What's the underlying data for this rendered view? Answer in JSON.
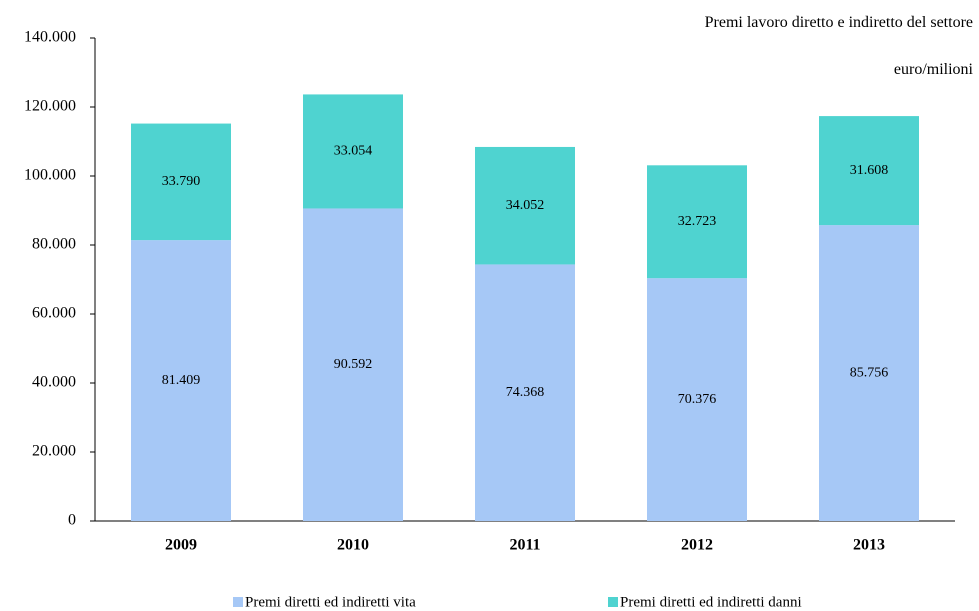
{
  "chart_data": {
    "type": "stacked_bar",
    "title": "Premi lavoro diretto e indiretto del settore",
    "subtitle": "euro/milioni",
    "categories": [
      "2009",
      "2010",
      "2011",
      "2012",
      "2013"
    ],
    "series": [
      {
        "name": "Premi diretti ed indiretti vita",
        "color": "#a6c8f6",
        "values": [
          81409,
          90592,
          74368,
          70376,
          85756
        ],
        "value_labels": [
          "81.409",
          "90.592",
          "74.368",
          "70.376",
          "85.756"
        ]
      },
      {
        "name": "Premi diretti ed indiretti danni",
        "color": "#4fd3d0",
        "values": [
          33790,
          33054,
          34052,
          32723,
          31608
        ],
        "value_labels": [
          "33.790",
          "33.054",
          "34.052",
          "32.723",
          "31.608"
        ]
      }
    ],
    "ylim": [
      0,
      140000
    ],
    "yticks": [
      0,
      {
        "value": 20000,
        "label": "20.000"
      },
      {
        "value": 40000,
        "label": "40.000"
      },
      {
        "value": 60000,
        "label": "60.000"
      },
      {
        "value": 80000,
        "label": "80.000"
      },
      {
        "value": 100000,
        "label": "100.000"
      },
      {
        "value": 120000,
        "label": "120.000"
      },
      {
        "value": 140000,
        "label": "140.000"
      }
    ],
    "grid": false
  }
}
